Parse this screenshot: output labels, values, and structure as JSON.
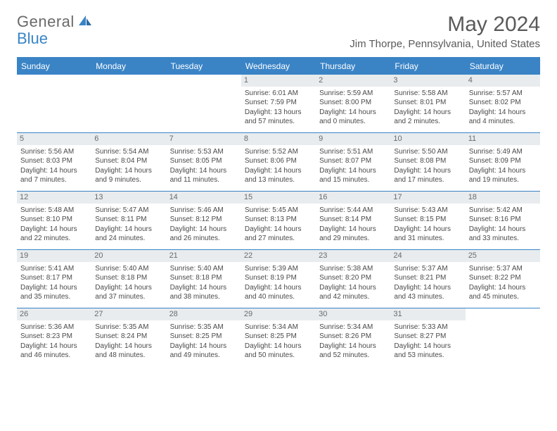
{
  "brand": {
    "name_a": "General",
    "name_b": "Blue"
  },
  "title": "May 2024",
  "location": "Jim Thorpe, Pennsylvania, United States",
  "colors": {
    "accent": "#3a84c6",
    "text": "#4a4a4a",
    "muted": "#6a6a6a",
    "daynum_bg": "#e8ecef",
    "background": "#ffffff"
  },
  "typography": {
    "title_fontsize": 30,
    "subtitle_fontsize": 15,
    "weekday_fontsize": 12,
    "body_fontsize": 10
  },
  "weekdays": [
    "Sunday",
    "Monday",
    "Tuesday",
    "Wednesday",
    "Thursday",
    "Friday",
    "Saturday"
  ],
  "weeks": [
    [
      {
        "n": "",
        "empty": true
      },
      {
        "n": "",
        "empty": true
      },
      {
        "n": "",
        "empty": true
      },
      {
        "n": "1",
        "sr": "Sunrise: 6:01 AM",
        "ss": "Sunset: 7:59 PM",
        "dl": "Daylight: 13 hours and 57 minutes."
      },
      {
        "n": "2",
        "sr": "Sunrise: 5:59 AM",
        "ss": "Sunset: 8:00 PM",
        "dl": "Daylight: 14 hours and 0 minutes."
      },
      {
        "n": "3",
        "sr": "Sunrise: 5:58 AM",
        "ss": "Sunset: 8:01 PM",
        "dl": "Daylight: 14 hours and 2 minutes."
      },
      {
        "n": "4",
        "sr": "Sunrise: 5:57 AM",
        "ss": "Sunset: 8:02 PM",
        "dl": "Daylight: 14 hours and 4 minutes."
      }
    ],
    [
      {
        "n": "5",
        "sr": "Sunrise: 5:56 AM",
        "ss": "Sunset: 8:03 PM",
        "dl": "Daylight: 14 hours and 7 minutes."
      },
      {
        "n": "6",
        "sr": "Sunrise: 5:54 AM",
        "ss": "Sunset: 8:04 PM",
        "dl": "Daylight: 14 hours and 9 minutes."
      },
      {
        "n": "7",
        "sr": "Sunrise: 5:53 AM",
        "ss": "Sunset: 8:05 PM",
        "dl": "Daylight: 14 hours and 11 minutes."
      },
      {
        "n": "8",
        "sr": "Sunrise: 5:52 AM",
        "ss": "Sunset: 8:06 PM",
        "dl": "Daylight: 14 hours and 13 minutes."
      },
      {
        "n": "9",
        "sr": "Sunrise: 5:51 AM",
        "ss": "Sunset: 8:07 PM",
        "dl": "Daylight: 14 hours and 15 minutes."
      },
      {
        "n": "10",
        "sr": "Sunrise: 5:50 AM",
        "ss": "Sunset: 8:08 PM",
        "dl": "Daylight: 14 hours and 17 minutes."
      },
      {
        "n": "11",
        "sr": "Sunrise: 5:49 AM",
        "ss": "Sunset: 8:09 PM",
        "dl": "Daylight: 14 hours and 19 minutes."
      }
    ],
    [
      {
        "n": "12",
        "sr": "Sunrise: 5:48 AM",
        "ss": "Sunset: 8:10 PM",
        "dl": "Daylight: 14 hours and 22 minutes."
      },
      {
        "n": "13",
        "sr": "Sunrise: 5:47 AM",
        "ss": "Sunset: 8:11 PM",
        "dl": "Daylight: 14 hours and 24 minutes."
      },
      {
        "n": "14",
        "sr": "Sunrise: 5:46 AM",
        "ss": "Sunset: 8:12 PM",
        "dl": "Daylight: 14 hours and 26 minutes."
      },
      {
        "n": "15",
        "sr": "Sunrise: 5:45 AM",
        "ss": "Sunset: 8:13 PM",
        "dl": "Daylight: 14 hours and 27 minutes."
      },
      {
        "n": "16",
        "sr": "Sunrise: 5:44 AM",
        "ss": "Sunset: 8:14 PM",
        "dl": "Daylight: 14 hours and 29 minutes."
      },
      {
        "n": "17",
        "sr": "Sunrise: 5:43 AM",
        "ss": "Sunset: 8:15 PM",
        "dl": "Daylight: 14 hours and 31 minutes."
      },
      {
        "n": "18",
        "sr": "Sunrise: 5:42 AM",
        "ss": "Sunset: 8:16 PM",
        "dl": "Daylight: 14 hours and 33 minutes."
      }
    ],
    [
      {
        "n": "19",
        "sr": "Sunrise: 5:41 AM",
        "ss": "Sunset: 8:17 PM",
        "dl": "Daylight: 14 hours and 35 minutes."
      },
      {
        "n": "20",
        "sr": "Sunrise: 5:40 AM",
        "ss": "Sunset: 8:18 PM",
        "dl": "Daylight: 14 hours and 37 minutes."
      },
      {
        "n": "21",
        "sr": "Sunrise: 5:40 AM",
        "ss": "Sunset: 8:18 PM",
        "dl": "Daylight: 14 hours and 38 minutes."
      },
      {
        "n": "22",
        "sr": "Sunrise: 5:39 AM",
        "ss": "Sunset: 8:19 PM",
        "dl": "Daylight: 14 hours and 40 minutes."
      },
      {
        "n": "23",
        "sr": "Sunrise: 5:38 AM",
        "ss": "Sunset: 8:20 PM",
        "dl": "Daylight: 14 hours and 42 minutes."
      },
      {
        "n": "24",
        "sr": "Sunrise: 5:37 AM",
        "ss": "Sunset: 8:21 PM",
        "dl": "Daylight: 14 hours and 43 minutes."
      },
      {
        "n": "25",
        "sr": "Sunrise: 5:37 AM",
        "ss": "Sunset: 8:22 PM",
        "dl": "Daylight: 14 hours and 45 minutes."
      }
    ],
    [
      {
        "n": "26",
        "sr": "Sunrise: 5:36 AM",
        "ss": "Sunset: 8:23 PM",
        "dl": "Daylight: 14 hours and 46 minutes."
      },
      {
        "n": "27",
        "sr": "Sunrise: 5:35 AM",
        "ss": "Sunset: 8:24 PM",
        "dl": "Daylight: 14 hours and 48 minutes."
      },
      {
        "n": "28",
        "sr": "Sunrise: 5:35 AM",
        "ss": "Sunset: 8:25 PM",
        "dl": "Daylight: 14 hours and 49 minutes."
      },
      {
        "n": "29",
        "sr": "Sunrise: 5:34 AM",
        "ss": "Sunset: 8:25 PM",
        "dl": "Daylight: 14 hours and 50 minutes."
      },
      {
        "n": "30",
        "sr": "Sunrise: 5:34 AM",
        "ss": "Sunset: 8:26 PM",
        "dl": "Daylight: 14 hours and 52 minutes."
      },
      {
        "n": "31",
        "sr": "Sunrise: 5:33 AM",
        "ss": "Sunset: 8:27 PM",
        "dl": "Daylight: 14 hours and 53 minutes."
      },
      {
        "n": "",
        "empty": true
      }
    ]
  ]
}
